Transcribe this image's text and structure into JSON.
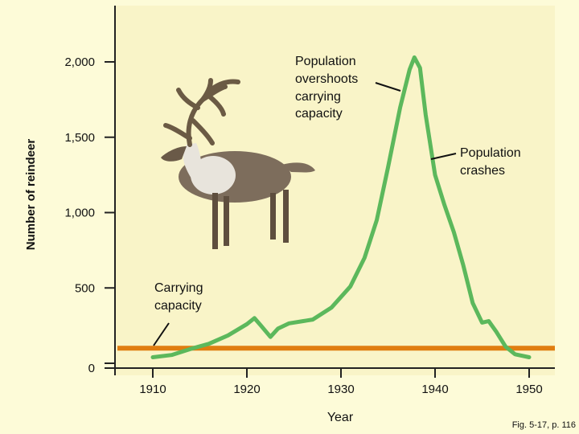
{
  "chart_data": {
    "type": "line",
    "xlabel": "Year",
    "ylabel": "Number of reindeer",
    "xlim": [
      1900,
      1954
    ],
    "ylim": [
      0,
      2200
    ],
    "x_ticks": [
      1910,
      1920,
      1930,
      1940,
      1950
    ],
    "y_ticks": [
      0,
      500,
      1000,
      1500,
      2000
    ],
    "x_tick_labels": [
      "1910",
      "1920",
      "1930",
      "1940",
      "1950"
    ],
    "y_tick_labels": [
      "0",
      "500",
      "1,000",
      "1,500",
      "2,000"
    ],
    "grid": false,
    "legend": "none",
    "carrying_capacity": 100,
    "series": [
      {
        "color": "#5cb85c",
        "points": [
          [
            1910,
            40
          ],
          [
            1912,
            55
          ],
          [
            1914,
            95
          ],
          [
            1916,
            130
          ],
          [
            1918,
            185
          ],
          [
            1920,
            260
          ],
          [
            1920.8,
            300
          ],
          [
            1921.5,
            250
          ],
          [
            1922.5,
            175
          ],
          [
            1923.3,
            230
          ],
          [
            1924.5,
            265
          ],
          [
            1926,
            280
          ],
          [
            1927,
            290
          ],
          [
            1929,
            370
          ],
          [
            1931,
            510
          ],
          [
            1932.5,
            700
          ],
          [
            1933.8,
            950
          ],
          [
            1935,
            1300
          ],
          [
            1936.3,
            1700
          ],
          [
            1937.3,
            1950
          ],
          [
            1937.8,
            2030
          ],
          [
            1938.4,
            1960
          ],
          [
            1939,
            1650
          ],
          [
            1940,
            1250
          ],
          [
            1941,
            1050
          ],
          [
            1942,
            870
          ],
          [
            1943,
            650
          ],
          [
            1944,
            400
          ],
          [
            1945,
            270
          ],
          [
            1945.7,
            280
          ],
          [
            1946.5,
            210
          ],
          [
            1947.5,
            110
          ],
          [
            1948.5,
            60
          ],
          [
            1950,
            40
          ]
        ]
      },
      {
        "color": "#e07d10",
        "points": [
          [
            1900,
            100
          ],
          [
            1954,
            100
          ]
        ]
      }
    ],
    "annotations": [
      {
        "lines": [
          "Population",
          "overshoots",
          "carrying",
          "capacity"
        ]
      },
      {
        "lines": [
          "Population",
          "crashes"
        ]
      },
      {
        "lines": [
          "Carrying",
          "capacity"
        ]
      }
    ]
  },
  "caption": "Fig. 5-17, p. 116",
  "colors": {
    "background": "#fdfbd8",
    "plot_background": "#f9f4c8",
    "population": "#5cb85c",
    "carrying_capacity": "#e07d10",
    "axis": "#222222"
  },
  "image": {
    "icon": "reindeer-illustration"
  }
}
